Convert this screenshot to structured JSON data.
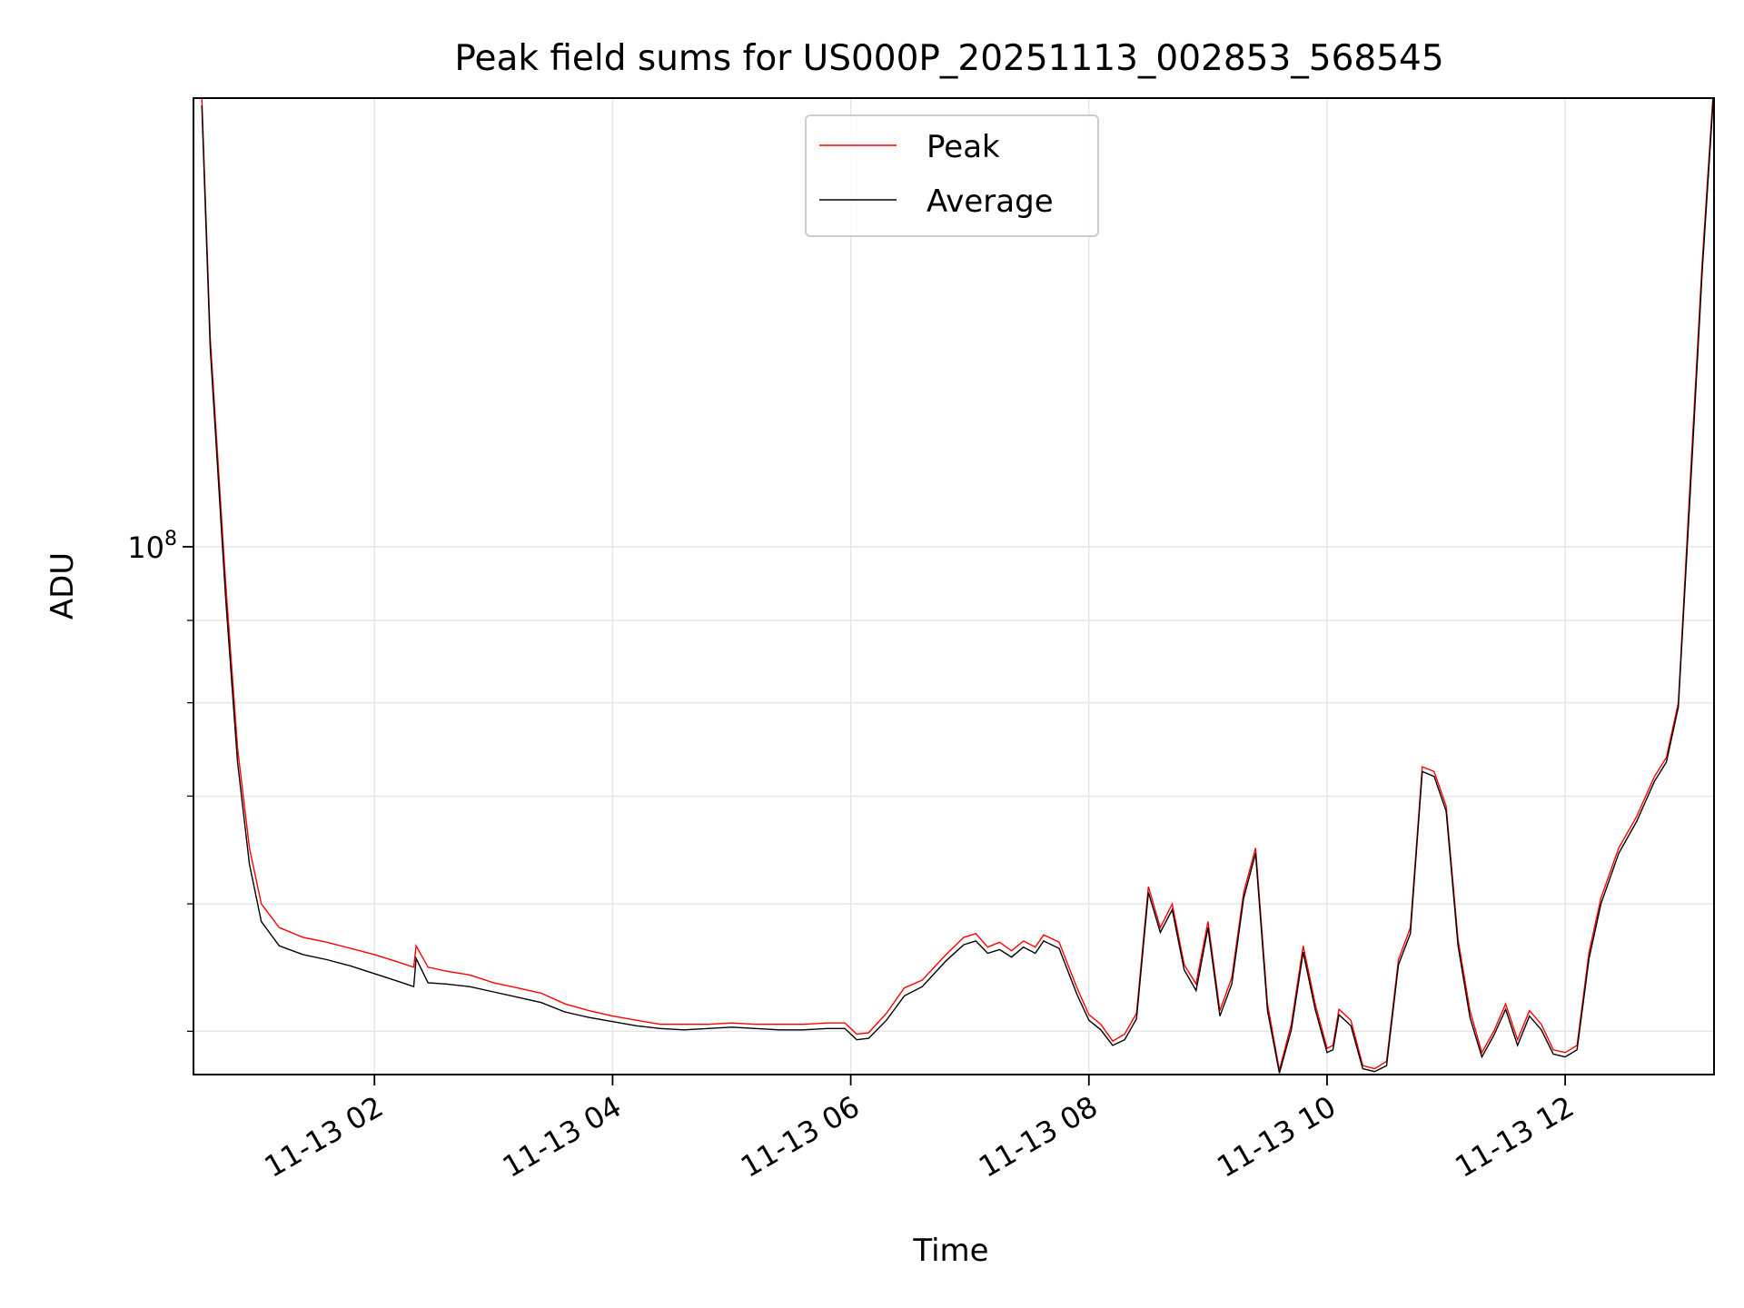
{
  "chart_data": {
    "type": "line",
    "title": "Peak field sums for US000P_20251113_002853_568545",
    "xlabel": "Time",
    "ylabel": "ADU",
    "yscale": "log",
    "grid": true,
    "legend_position": "upper-center",
    "x_range_hours": [
      0.48,
      13.25
    ],
    "ylim": [
      47000000,
      190000000
    ],
    "x_ticks": [
      {
        "hour": 2,
        "label": "11-13 02"
      },
      {
        "hour": 4,
        "label": "11-13 04"
      },
      {
        "hour": 6,
        "label": "11-13 06"
      },
      {
        "hour": 8,
        "label": "11-13 08"
      },
      {
        "hour": 10,
        "label": "11-13 10"
      },
      {
        "hour": 12,
        "label": "11-13 12"
      }
    ],
    "y_tick_major": {
      "value": 100000000,
      "label_base": "10",
      "label_exp": "8"
    },
    "y_minor_ticks": [
      50000000,
      60000000,
      70000000,
      80000000,
      90000000,
      200000000
    ],
    "series": [
      {
        "name": "Peak",
        "color": "#ff0000",
        "x": [
          0.55,
          0.62,
          0.75,
          0.85,
          0.95,
          1.05,
          1.2,
          1.4,
          1.6,
          1.8,
          2.0,
          2.2,
          2.33,
          2.35,
          2.45,
          2.6,
          2.8,
          3.0,
          3.2,
          3.4,
          3.6,
          3.8,
          4.0,
          4.2,
          4.4,
          4.6,
          4.8,
          5.0,
          5.2,
          5.4,
          5.6,
          5.8,
          5.95,
          6.05,
          6.15,
          6.3,
          6.45,
          6.6,
          6.8,
          6.95,
          7.05,
          7.15,
          7.25,
          7.35,
          7.45,
          7.55,
          7.62,
          7.75,
          7.9,
          8.0,
          8.1,
          8.2,
          8.3,
          8.4,
          8.5,
          8.6,
          8.7,
          8.8,
          8.9,
          9.0,
          9.1,
          9.2,
          9.3,
          9.4,
          9.5,
          9.6,
          9.7,
          9.8,
          9.9,
          10.0,
          10.05,
          10.1,
          10.2,
          10.3,
          10.4,
          10.5,
          10.6,
          10.7,
          10.8,
          10.9,
          11.0,
          11.1,
          11.2,
          11.3,
          11.4,
          11.5,
          11.6,
          11.7,
          11.8,
          11.9,
          12.0,
          12.1,
          12.2,
          12.3,
          12.45,
          12.6,
          12.75,
          12.85,
          12.95,
          13.05,
          13.15,
          13.25
        ],
        "y": [
          190000000,
          135000000,
          95000000,
          75000000,
          65000000,
          60000000,
          58000000,
          57200000,
          56800000,
          56300000,
          55800000,
          55200000,
          54800000,
          56500000,
          54800000,
          54500000,
          54200000,
          53600000,
          53200000,
          52800000,
          52000000,
          51500000,
          51100000,
          50800000,
          50500000,
          50500000,
          50500000,
          50600000,
          50500000,
          50500000,
          50500000,
          50600000,
          50600000,
          49800000,
          49900000,
          51300000,
          53200000,
          53800000,
          55800000,
          57200000,
          57500000,
          56400000,
          56800000,
          56100000,
          56900000,
          56400000,
          57400000,
          56800000,
          53200000,
          51200000,
          50500000,
          49300000,
          49800000,
          51300000,
          61500000,
          58000000,
          60000000,
          55000000,
          53500000,
          58500000,
          51500000,
          54000000,
          61000000,
          65000000,
          52000000,
          47300000,
          50500000,
          56500000,
          52000000,
          48800000,
          49000000,
          51600000,
          50800000,
          47600000,
          47400000,
          47900000,
          55400000,
          58000000,
          73000000,
          72500000,
          69000000,
          57000000,
          51500000,
          48500000,
          50000000,
          52000000,
          49400000,
          51500000,
          50500000,
          48700000,
          48500000,
          49000000,
          56000000,
          60500000,
          65000000,
          68000000,
          72000000,
          74000000,
          80000000,
          110000000,
          150000000,
          195000000
        ]
      },
      {
        "name": "Average",
        "color": "#000000",
        "x": [
          0.55,
          0.62,
          0.75,
          0.85,
          0.95,
          1.05,
          1.2,
          1.4,
          1.6,
          1.8,
          2.0,
          2.2,
          2.33,
          2.35,
          2.45,
          2.6,
          2.8,
          3.0,
          3.2,
          3.4,
          3.6,
          3.8,
          4.0,
          4.2,
          4.4,
          4.6,
          4.8,
          5.0,
          5.2,
          5.4,
          5.6,
          5.8,
          5.95,
          6.05,
          6.15,
          6.3,
          6.45,
          6.6,
          6.8,
          6.95,
          7.05,
          7.15,
          7.25,
          7.35,
          7.45,
          7.55,
          7.62,
          7.75,
          7.9,
          8.0,
          8.1,
          8.2,
          8.3,
          8.4,
          8.5,
          8.6,
          8.7,
          8.8,
          8.9,
          9.0,
          9.1,
          9.2,
          9.3,
          9.4,
          9.5,
          9.6,
          9.7,
          9.8,
          9.9,
          10.0,
          10.05,
          10.1,
          10.2,
          10.3,
          10.4,
          10.5,
          10.6,
          10.7,
          10.8,
          10.9,
          11.0,
          11.1,
          11.2,
          11.3,
          11.4,
          11.5,
          11.6,
          11.7,
          11.8,
          11.9,
          12.0,
          12.1,
          12.2,
          12.3,
          12.45,
          12.6,
          12.75,
          12.85,
          12.95,
          13.05,
          13.15,
          13.25
        ],
        "y": [
          188000000,
          133000000,
          93000000,
          73500000,
          63500000,
          58500000,
          56500000,
          55800000,
          55400000,
          54900000,
          54300000,
          53700000,
          53300000,
          55500000,
          53600000,
          53500000,
          53300000,
          52900000,
          52500000,
          52100000,
          51400000,
          51000000,
          50700000,
          50400000,
          50200000,
          50100000,
          50200000,
          50300000,
          50200000,
          50100000,
          50100000,
          50200000,
          50200000,
          49400000,
          49500000,
          50800000,
          52600000,
          53300000,
          55300000,
          56600000,
          56900000,
          55900000,
          56200000,
          55600000,
          56400000,
          55900000,
          56900000,
          56300000,
          52700000,
          50800000,
          50100000,
          49000000,
          49400000,
          50900000,
          61000000,
          57600000,
          59500000,
          54600000,
          53000000,
          58000000,
          51100000,
          53500000,
          60500000,
          64500000,
          51500000,
          47100000,
          50100000,
          56000000,
          51600000,
          48500000,
          48700000,
          51200000,
          50400000,
          47400000,
          47200000,
          47600000,
          55000000,
          57500000,
          72500000,
          72000000,
          68500000,
          56500000,
          51000000,
          48200000,
          49700000,
          51600000,
          49000000,
          51100000,
          50100000,
          48400000,
          48200000,
          48700000,
          55500000,
          60000000,
          64500000,
          67500000,
          71500000,
          73500000,
          79500000,
          108000000,
          148000000,
          193000000
        ]
      }
    ]
  }
}
